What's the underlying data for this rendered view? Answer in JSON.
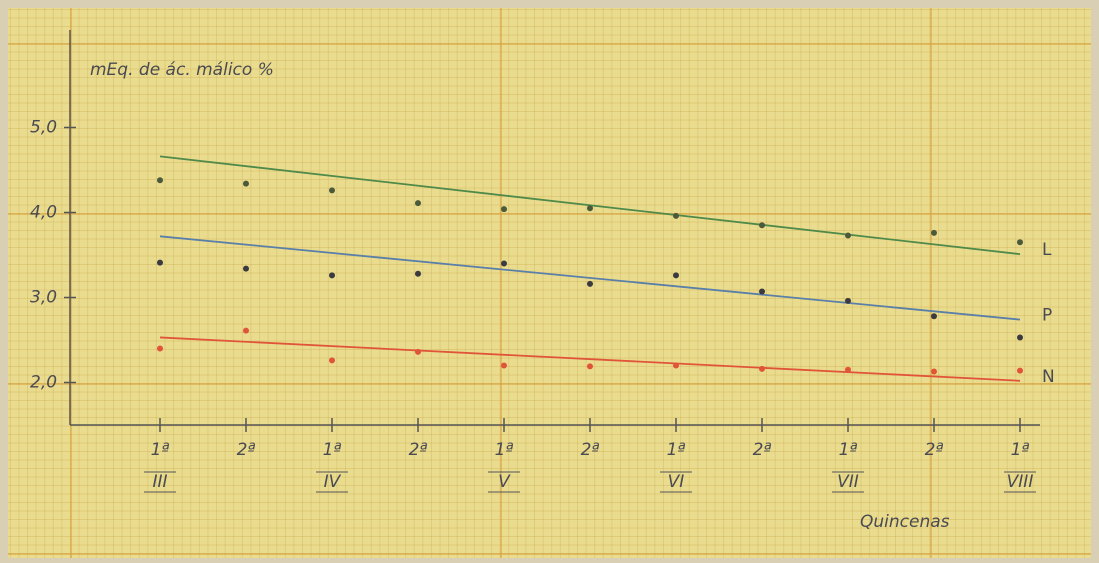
{
  "chart_data": {
    "type": "scatter",
    "title": "mEq. de ác. málico %",
    "x_label": "Quincenas",
    "categories": [
      "1ª",
      "2ª",
      "1ª",
      "2ª",
      "1ª",
      "2ª",
      "1ª",
      "2ª",
      "1ª",
      "2ª",
      "1ª"
    ],
    "months": [
      "III",
      null,
      "IV",
      null,
      "V",
      null,
      "VI",
      null,
      "VII",
      null,
      "VIII"
    ],
    "ylim": [
      1.5,
      6.0
    ],
    "yticks": [
      {
        "value": 2,
        "label": "2,0"
      },
      {
        "value": 3,
        "label": "3,0"
      },
      {
        "value": 4,
        "label": "4,0"
      },
      {
        "value": 5,
        "label": "5,0"
      }
    ],
    "grid": true,
    "series": [
      {
        "name": "L",
        "color": "#4f8a4a",
        "point_color": "#4a5a3a",
        "values": [
          4.38,
          4.34,
          4.26,
          4.11,
          4.04,
          4.05,
          3.96,
          3.85,
          3.73,
          3.76,
          3.65
        ],
        "trend": [
          4.66,
          3.51
        ]
      },
      {
        "name": "P",
        "color": "#5a7fa8",
        "point_color": "#3a3a40",
        "values": [
          3.41,
          3.34,
          3.26,
          3.28,
          3.4,
          3.16,
          3.26,
          3.07,
          2.96,
          2.78,
          2.53
        ],
        "trend": [
          3.72,
          2.74
        ]
      },
      {
        "name": "N",
        "color": "#e0553a",
        "point_color": "#e0553a",
        "values": [
          2.4,
          2.61,
          2.26,
          2.36,
          2.2,
          2.19,
          2.2,
          2.16,
          2.15,
          2.13,
          2.14
        ],
        "trend": [
          2.53,
          2.02
        ]
      }
    ]
  }
}
